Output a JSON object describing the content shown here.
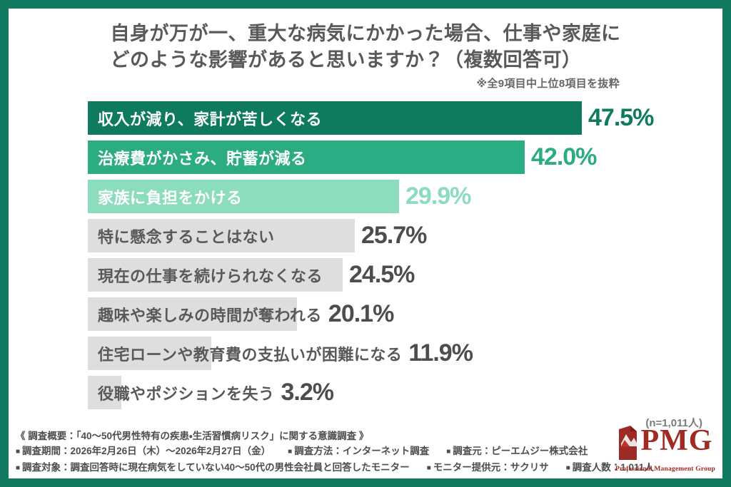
{
  "title": {
    "line1": "自身が万が一、重大な病気にかかった場合、仕事や家庭に",
    "line2": "どのような影響があると思いますか？（複数回答可）",
    "note": "※全9項目中上位8項目を抜粋"
  },
  "chart_data": {
    "type": "bar",
    "orientation": "horizontal",
    "title": "自身が万が一、重大な病気にかかった場合、仕事や家庭にどのような影響があると思いますか？（複数回答可）",
    "subtitle_note": "※全9項目中上位8項目を抜粋",
    "unit": "%",
    "xlim": [
      0,
      50
    ],
    "grid": false,
    "legend": "none",
    "categories": [
      "収入が減り、家計が苦しくなる",
      "治療費がかさみ、貯蓄が減る",
      "家族に負担をかける",
      "特に懸念することはない",
      "現在の仕事を続けられなくなる",
      "趣味や楽しみの時間が奪われる",
      "住宅ローンや教育費の支払いが困難になる",
      "役職やポジションを失う"
    ],
    "values": [
      47.5,
      42.0,
      29.9,
      25.7,
      24.5,
      20.1,
      11.9,
      3.2
    ],
    "value_labels": [
      "47.5%",
      "42.0%",
      "29.9%",
      "25.7%",
      "24.5%",
      "20.1%",
      "11.9%",
      "3.2%"
    ],
    "bar_colors": [
      "#0f7b5e",
      "#2bac83",
      "#8cdcbe",
      "#dedede",
      "#dedede",
      "#dedede",
      "#dedede",
      "#dedede"
    ],
    "label_colors": [
      "#ffffff",
      "#ffffff",
      "#ffffff",
      "#595959",
      "#595959",
      "#595959",
      "#595959",
      "#595959"
    ],
    "value_colors": [
      "#0f7b5e",
      "#2bac83",
      "#8cdcbe",
      "#4d4d4d",
      "#4d4d4d",
      "#4d4d4d",
      "#4d4d4d",
      "#4d4d4d"
    ],
    "sample_note": "(n=1,011人)"
  },
  "footer": {
    "overview": "《 調査概要：「40〜50代男性特有の疾患・生活習慣病リスク」に関する意識調査 》",
    "bullet": "■",
    "line2": [
      "調査期間：2026年2月26日（木）〜2026年2月27日（金）",
      "調査方法：インターネット調査",
      "調査元：ピーエムジー株式会社"
    ],
    "line3": [
      "調査対象：調査回答時に現在病気をしていない40〜50代の男性会社員と回答したモニター",
      "モニター提供元：サクリサ",
      "調査人数：1,011人"
    ]
  },
  "logo": {
    "text": "PMG",
    "subtitle": "Professional Management Group",
    "brand_color": "#a02a24",
    "icon": "pmg-flag-icon"
  },
  "frame": {
    "border_color": "#117a5e",
    "background": "#ffffff"
  }
}
